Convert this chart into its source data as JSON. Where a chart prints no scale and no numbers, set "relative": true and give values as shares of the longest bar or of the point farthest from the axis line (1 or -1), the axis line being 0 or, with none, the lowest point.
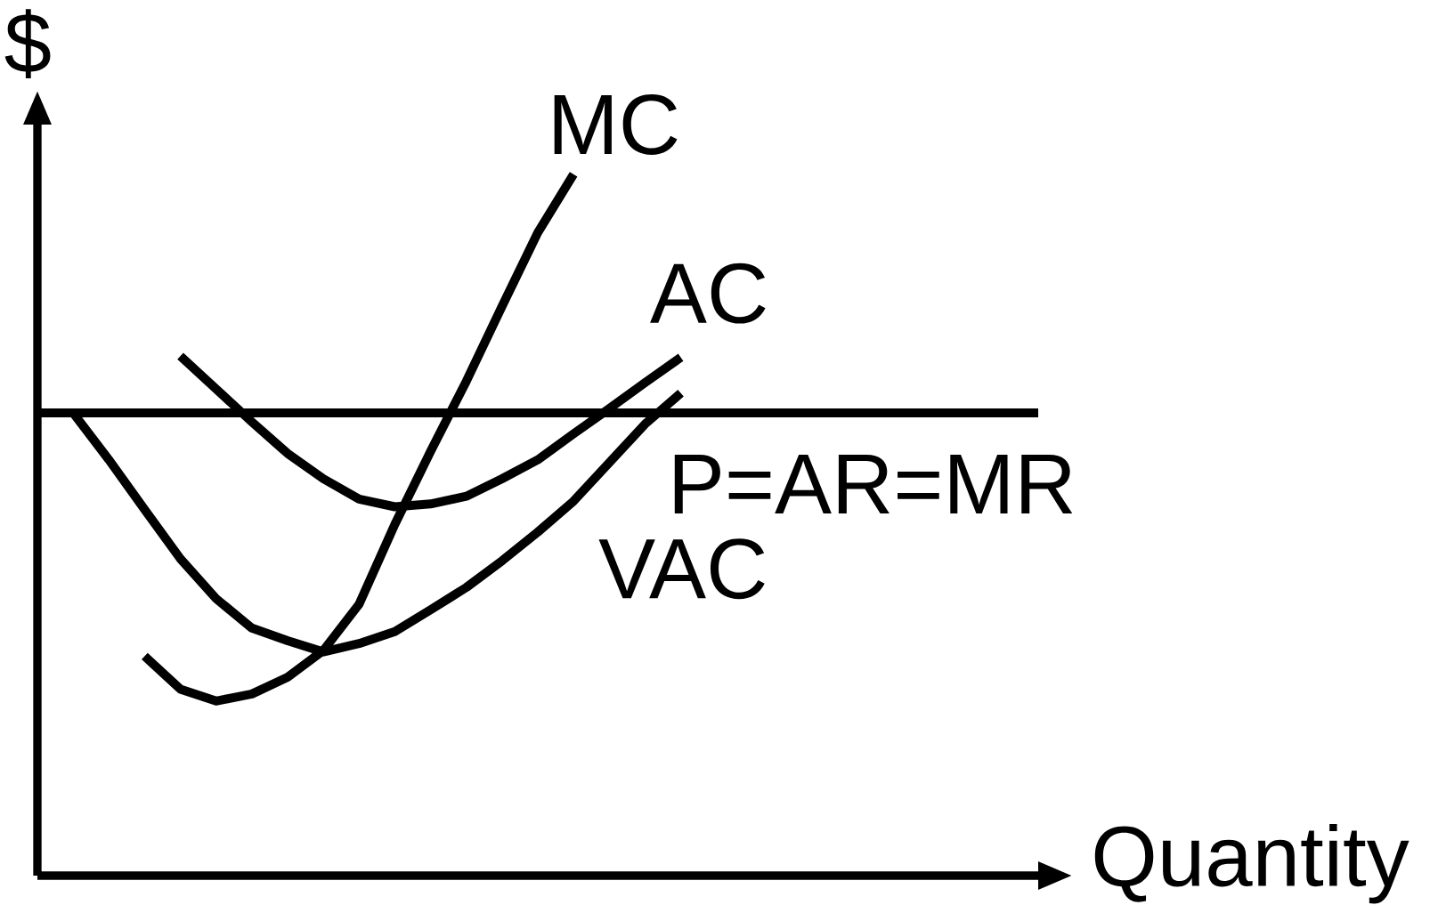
{
  "chart_data": {
    "type": "line",
    "xlabel": "Quantity",
    "ylabel": "$",
    "relative": true,
    "marker": "none",
    "line_style": "solid",
    "categories": [
      null,
      null,
      null,
      null,
      null,
      null,
      null,
      null,
      null,
      null,
      null,
      null,
      null,
      null,
      null,
      null,
      null,
      null,
      null,
      null,
      null,
      null,
      null,
      null,
      null,
      null,
      null,
      null,
      null
    ],
    "series": [
      {
        "name": "MC",
        "color": "#000000",
        "values": [
          null,
          null,
          null,
          0.313,
          0.266,
          0.249,
          0.259,
          0.283,
          0.321,
          0.387,
          0.501,
          0.605,
          0.705,
          0.812,
          0.917,
          1,
          null,
          null,
          null,
          null,
          null,
          null,
          null,
          null,
          null,
          null,
          null,
          null,
          null
        ]
      },
      {
        "name": "AC",
        "color": "#000000",
        "values": [
          null,
          null,
          null,
          null,
          0.741,
          0.694,
          0.647,
          0.602,
          0.566,
          0.537,
          0.526,
          0.53,
          0.541,
          0.566,
          0.593,
          0.63,
          0.666,
          0.703,
          0.739,
          null,
          null,
          null,
          null,
          null,
          null,
          null,
          null,
          null,
          null
        ]
      },
      {
        "name": "P=AR=MR",
        "color": "#000000",
        "values": [
          0.66,
          0.66,
          0.66,
          0.66,
          0.66,
          0.66,
          0.66,
          0.66,
          0.66,
          0.66,
          0.66,
          0.66,
          0.66,
          0.66,
          0.66,
          0.66,
          0.66,
          0.66,
          0.66,
          0.66,
          0.66,
          0.66,
          0.66,
          0.66,
          0.66,
          0.66,
          0.66,
          0.66,
          0.66
        ]
      },
      {
        "name": "VAC",
        "color": "#000000",
        "values": [
          null,
          0.66,
          0.593,
          0.522,
          0.452,
          0.395,
          0.353,
          0.335,
          0.319,
          0.331,
          0.348,
          0.379,
          0.411,
          0.449,
          0.49,
          0.534,
          0.589,
          0.644,
          0.688,
          null,
          null,
          null,
          null,
          null,
          null,
          null,
          null,
          null,
          null
        ]
      }
    ]
  }
}
